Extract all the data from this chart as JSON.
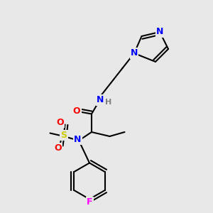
{
  "bg_color": "#e8e8e8",
  "bond_color": "#000000",
  "atom_colors": {
    "N": "#0000ff",
    "O": "#ff0000",
    "S": "#cccc00",
    "F": "#ff00ff",
    "H": "#808080",
    "C": "#000000"
  },
  "figsize": [
    3.0,
    3.0
  ],
  "dpi": 100
}
